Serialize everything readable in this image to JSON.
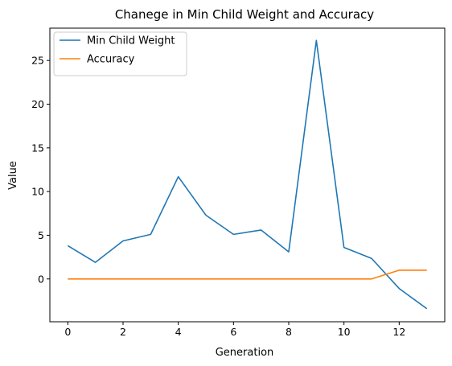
{
  "chart_data": {
    "type": "line",
    "title": "Chanege in  Min Child Weight and Accuracy",
    "xlabel": "Generation",
    "ylabel": "Value",
    "x": [
      0,
      1,
      2,
      3,
      4,
      5,
      6,
      7,
      8,
      9,
      10,
      11,
      12,
      13
    ],
    "xlim": [
      -0.65,
      13.65
    ],
    "ylim": [
      -4.9,
      28.7
    ],
    "xticks": [
      0,
      2,
      4,
      6,
      8,
      10,
      12
    ],
    "yticks": [
      0,
      5,
      10,
      15,
      20,
      25
    ],
    "grid": false,
    "legend": "upper-left",
    "series": [
      {
        "name": "Min Child Weight",
        "color": "#1f77b4",
        "values": [
          3.8,
          1.9,
          4.35,
          5.1,
          11.7,
          7.3,
          5.1,
          5.6,
          3.1,
          27.3,
          3.6,
          2.35,
          -1.1,
          -3.4
        ]
      },
      {
        "name": "Accuracy",
        "color": "#ff7f0e",
        "values": [
          0,
          0,
          0,
          0,
          0,
          0,
          0,
          0,
          0,
          0,
          0,
          0,
          1,
          1
        ]
      }
    ]
  }
}
